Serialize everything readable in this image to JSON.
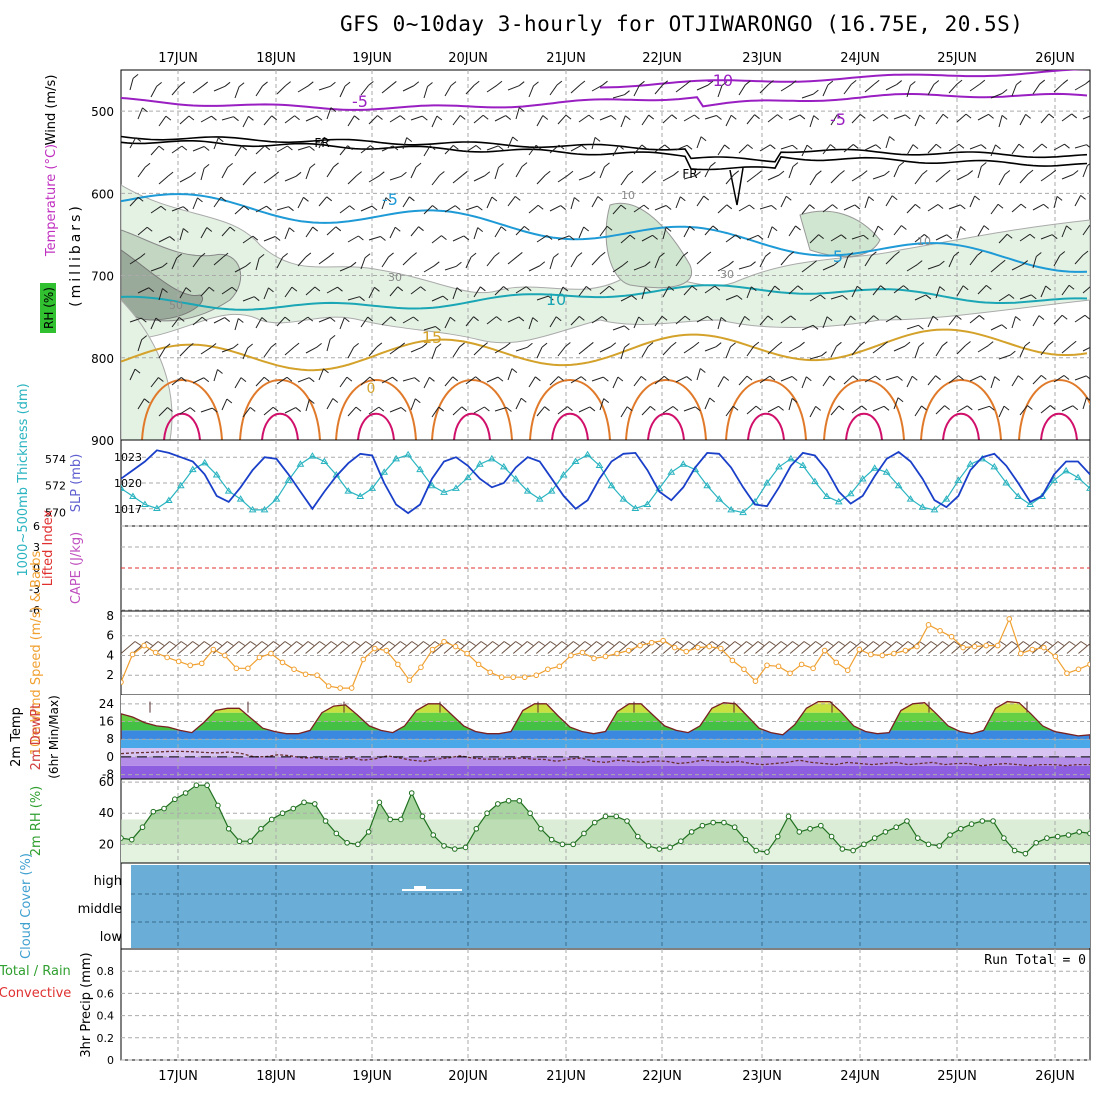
{
  "page": {
    "title": "GFS 0~10day 3-hourly for OTJIWARONGO (16.75E, 20.5S)"
  },
  "chart_data": [
    {
      "id": "pressure_cross_section",
      "type": "contour",
      "x_dates": [
        "17JUN",
        "18JUN",
        "19JUN",
        "20JUN",
        "21JUN",
        "22JUN",
        "23JUN",
        "24JUN",
        "25JUN",
        "26JUN"
      ],
      "ylabel": "(millibars)",
      "yticks": [
        500,
        600,
        700,
        800,
        900
      ],
      "ylim": [
        450,
        900
      ],
      "side_labels": [
        "Wind (m/s)",
        "Temperature (°C)",
        "RH (%)"
      ],
      "contour_labels": [
        "-10",
        "-5",
        "-5",
        "FR",
        "FR",
        "-5",
        "5",
        "10",
        "15",
        "10",
        "10",
        "30",
        "30",
        "50",
        "0"
      ],
      "colors": {
        "t_minus10": "#9a1fc2",
        "t_minus5": "#9a1fc2",
        "freezing": "#000000",
        "t5": "#1e9ad6",
        "t10": "#1aa6b5",
        "t15": "#d4a22a",
        "t20": "#e07a2a",
        "t25": "#d0106a",
        "rh": "#c8e6c8"
      }
    },
    {
      "id": "slp_thickness",
      "type": "line",
      "series_names": [
        "SLP (mb)",
        "1000~500mb Thickness (dm)"
      ],
      "yticks_slp": [
        1017,
        1020,
        1023
      ],
      "yticks_thickness": [
        570,
        572,
        574
      ],
      "slp": [
        1020.5,
        1021.5,
        1022.5,
        1023.8,
        1023.5,
        1023.0,
        1022.5,
        1021.0,
        1018.5,
        1017.8,
        1019.5,
        1021.5,
        1023.0,
        1022.8,
        1021.0,
        1019.0,
        1017.0,
        1019.0,
        1020.8,
        1022.3,
        1023.4,
        1023.2,
        1020.0,
        1017.5,
        1016.5,
        1017.5,
        1020.5,
        1022.5,
        1023.0,
        1022.0,
        1020.5,
        1019.5,
        1020.0,
        1021.8,
        1023.0,
        1022.5,
        1020.5,
        1018.5,
        1017.0,
        1018.0,
        1020.5,
        1022.5,
        1023.4,
        1023.5,
        1021.5,
        1019.0,
        1018.0,
        1019.5,
        1021.8,
        1023.5,
        1023.4,
        1021.8,
        1019.5,
        1017.5,
        1017.3,
        1019.5,
        1022.0,
        1023.5,
        1023.2,
        1021.5,
        1019.0,
        1017.6,
        1018.5,
        1020.8,
        1022.8,
        1023.6,
        1022.5,
        1020.5,
        1018.0,
        1017.2,
        1018.5,
        1021.5,
        1023.0,
        1023.4,
        1022.0,
        1020.0,
        1017.8,
        1018.5,
        1021.0,
        1022.5,
        1022.5,
        1021.0
      ],
      "thickness": [
        571.8,
        571.2,
        570.6,
        570.3,
        570.9,
        572.0,
        573.2,
        573.7,
        572.8,
        571.6,
        571.0,
        570.2,
        570.2,
        571.0,
        572.4,
        573.6,
        574.2,
        573.8,
        572.8,
        571.6,
        571.2,
        571.8,
        573.0,
        574.0,
        574.3,
        573.2,
        572.0,
        571.5,
        571.8,
        572.6,
        573.6,
        574.0,
        573.4,
        572.5,
        571.6,
        571.0,
        571.6,
        572.8,
        573.8,
        574.3,
        573.5,
        572.0,
        571.0,
        570.3,
        570.6,
        571.8,
        573.0,
        573.6,
        573.2,
        572.0,
        571.0,
        570.2,
        570.0,
        570.8,
        572.2,
        573.4,
        574.0,
        573.5,
        572.3,
        571.2,
        570.8,
        571.4,
        572.5,
        573.3,
        573.0,
        572.0,
        571.0,
        570.4,
        570.2,
        571.0,
        572.4,
        573.6,
        574.0,
        573.4,
        572.2,
        571.2,
        570.6,
        571.2,
        572.4,
        573.1,
        572.6,
        571.8
      ]
    },
    {
      "id": "stability",
      "type": "line",
      "series_names": [
        "Lifted Index",
        "CAPE (J/kg)"
      ],
      "yticks": [
        "6",
        "3",
        "0",
        "-3",
        "-6"
      ],
      "ylim": [
        -6,
        6
      ]
    },
    {
      "id": "wind10m",
      "type": "line",
      "series_names": [
        "10m Wind Speed (m/s) & Barbs"
      ],
      "yticks": [
        2,
        4,
        6,
        8
      ],
      "ylim": [
        0,
        8
      ],
      "values": [
        1.3,
        4.1,
        5.0,
        4.3,
        3.8,
        3.4,
        3.0,
        3.2,
        4.6,
        4.0,
        2.7,
        2.7,
        3.8,
        4.2,
        3.3,
        2.6,
        2.1,
        2.0,
        0.9,
        0.7,
        0.7,
        3.6,
        4.7,
        4.5,
        3.1,
        1.5,
        2.8,
        4.6,
        5.4,
        4.9,
        4.2,
        3.1,
        2.3,
        1.8,
        1.8,
        1.8,
        2.0,
        2.6,
        2.9,
        4.0,
        4.3,
        3.7,
        3.9,
        4.2,
        4.5,
        5.0,
        5.3,
        5.5,
        4.8,
        4.4,
        4.8,
        4.9,
        4.7,
        3.5,
        2.6,
        1.4,
        3.0,
        2.9,
        2.2,
        3.1,
        2.7,
        4.5,
        3.3,
        2.5,
        4.6,
        4.1,
        4.0,
        4.2,
        4.5,
        4.9,
        7.1,
        6.5,
        5.9,
        4.8,
        4.9,
        5.0,
        5.0,
        7.7,
        4.2,
        4.6,
        4.8,
        3.9,
        2.2,
        2.6,
        3.1
      ],
      "barb_color": "#6b5040",
      "line_color": "#f0a030"
    },
    {
      "id": "temperature2m",
      "type": "area",
      "series_names": [
        "2m Temp",
        "2m DewPt",
        "(6hr Min/Max)"
      ],
      "yticks": [
        "24",
        "16",
        "8",
        "0",
        "-8"
      ],
      "ylim": [
        -10,
        28
      ],
      "temp": [
        19.5,
        18.0,
        15.5,
        14.0,
        13.5,
        12.0,
        11.0,
        15.5,
        21.0,
        22.0,
        22.0,
        17.5,
        13.0,
        11.5,
        10.5,
        10.5,
        12.0,
        20.0,
        23.0,
        23.5,
        19.0,
        14.0,
        12.0,
        11.0,
        14.0,
        21.0,
        24.0,
        24.0,
        19.0,
        14.0,
        11.5,
        10.5,
        10.5,
        11.5,
        21.0,
        24.0,
        24.0,
        18.5,
        13.5,
        11.5,
        10.5,
        11.5,
        20.5,
        24.0,
        24.0,
        19.0,
        14.0,
        12.0,
        11.0,
        14.0,
        22.0,
        24.5,
        24.0,
        18.5,
        13.0,
        11.0,
        10.0,
        14.5,
        22.0,
        25.0,
        25.0,
        20.0,
        14.0,
        11.5,
        10.5,
        11.0,
        21.0,
        24.0,
        24.5,
        19.5,
        14.0,
        11.5,
        10.5,
        12.0,
        22.0,
        25.0,
        24.5,
        19.5,
        14.0,
        11.5,
        10.5,
        9.5,
        10.0
      ],
      "dewpt": [
        1.5,
        1.8,
        2.0,
        2.2,
        2.5,
        2.5,
        2.3,
        2.0,
        1.8,
        2.2,
        1.5,
        0.0,
        0.2,
        1.0,
        0.5,
        -0.5,
        -0.3,
        -1.0,
        -1.2,
        -0.5,
        -1.5,
        -0.8,
        0.5,
        -0.5,
        -1.5,
        -2.0,
        -1.0,
        -0.5,
        0.5,
        -0.5,
        -1.0,
        -1.0,
        -0.8,
        -0.5,
        -1.0,
        -1.2,
        -2.0,
        -1.0,
        -0.5,
        -2.0,
        -2.5,
        -1.5,
        -2.0,
        -2.5,
        -1.8,
        -2.0,
        -3.0,
        -2.5,
        -1.5,
        -2.0,
        -2.5,
        -2.0,
        -3.0,
        -3.5,
        -3.0,
        -2.5,
        -1.5,
        -2.5,
        -3.0,
        -3.5,
        -2.5,
        -3.0,
        -3.5,
        -3.0,
        -2.5,
        -3.5,
        -3.0,
        -2.5,
        -3.5,
        -3.0,
        -3.0,
        -4.0,
        -3.5,
        -3.0,
        -3.5,
        -4.0,
        -3.5,
        -3.5,
        -4.0,
        -3.5,
        -3.5
      ]
    },
    {
      "id": "rh2m",
      "type": "area",
      "series_names": [
        "2m RH (%)"
      ],
      "yticks": [
        20,
        40,
        60
      ],
      "ylim": [
        8,
        60
      ],
      "values": [
        24,
        23,
        31,
        41,
        43,
        49,
        53,
        58,
        58,
        45,
        30,
        22,
        22,
        30,
        36,
        40,
        43,
        47,
        46,
        35,
        27,
        21,
        20,
        28,
        47,
        36,
        36,
        53,
        38,
        26,
        19,
        17,
        18,
        30,
        40,
        46,
        48,
        48,
        40,
        30,
        23,
        20,
        20,
        27,
        34,
        38,
        38,
        35,
        25,
        19,
        17,
        18,
        22,
        28,
        32,
        34,
        34,
        31,
        23,
        16,
        15,
        25,
        38,
        28,
        30,
        32,
        25,
        17,
        16,
        20,
        24,
        28,
        31,
        35,
        24,
        20,
        19,
        26,
        30,
        33,
        35,
        35,
        24,
        16,
        14,
        21,
        24,
        25,
        26,
        28,
        27
      ]
    },
    {
      "id": "cloud_cover",
      "type": "heatmap",
      "series_names": [
        "Cloud Cover (%)"
      ],
      "yticks": [
        "high",
        "middle",
        "low"
      ],
      "background": "#6aaed8"
    },
    {
      "id": "precip",
      "type": "bar",
      "series_names": [
        "3hr Precip (mm)",
        "Total / Rain",
        "Convective"
      ],
      "yticks": [
        "0.8",
        "0.6",
        "0.4",
        "0.2",
        "0"
      ],
      "ylim": [
        0,
        1
      ],
      "annotation": "Run Total = 0",
      "values": []
    }
  ],
  "colors": {
    "slp": "#1a3fc8",
    "thickness": "#2ab4c0",
    "lifted_index": "#e03030",
    "cape": "#c050c0",
    "wind_speed_label": "#f0a030",
    "temp_label": "#d04040",
    "rh_label": "#30a030",
    "cloud_label": "#40a0d0",
    "precip_total": "#30a030",
    "precip_conv": "#e03030"
  }
}
